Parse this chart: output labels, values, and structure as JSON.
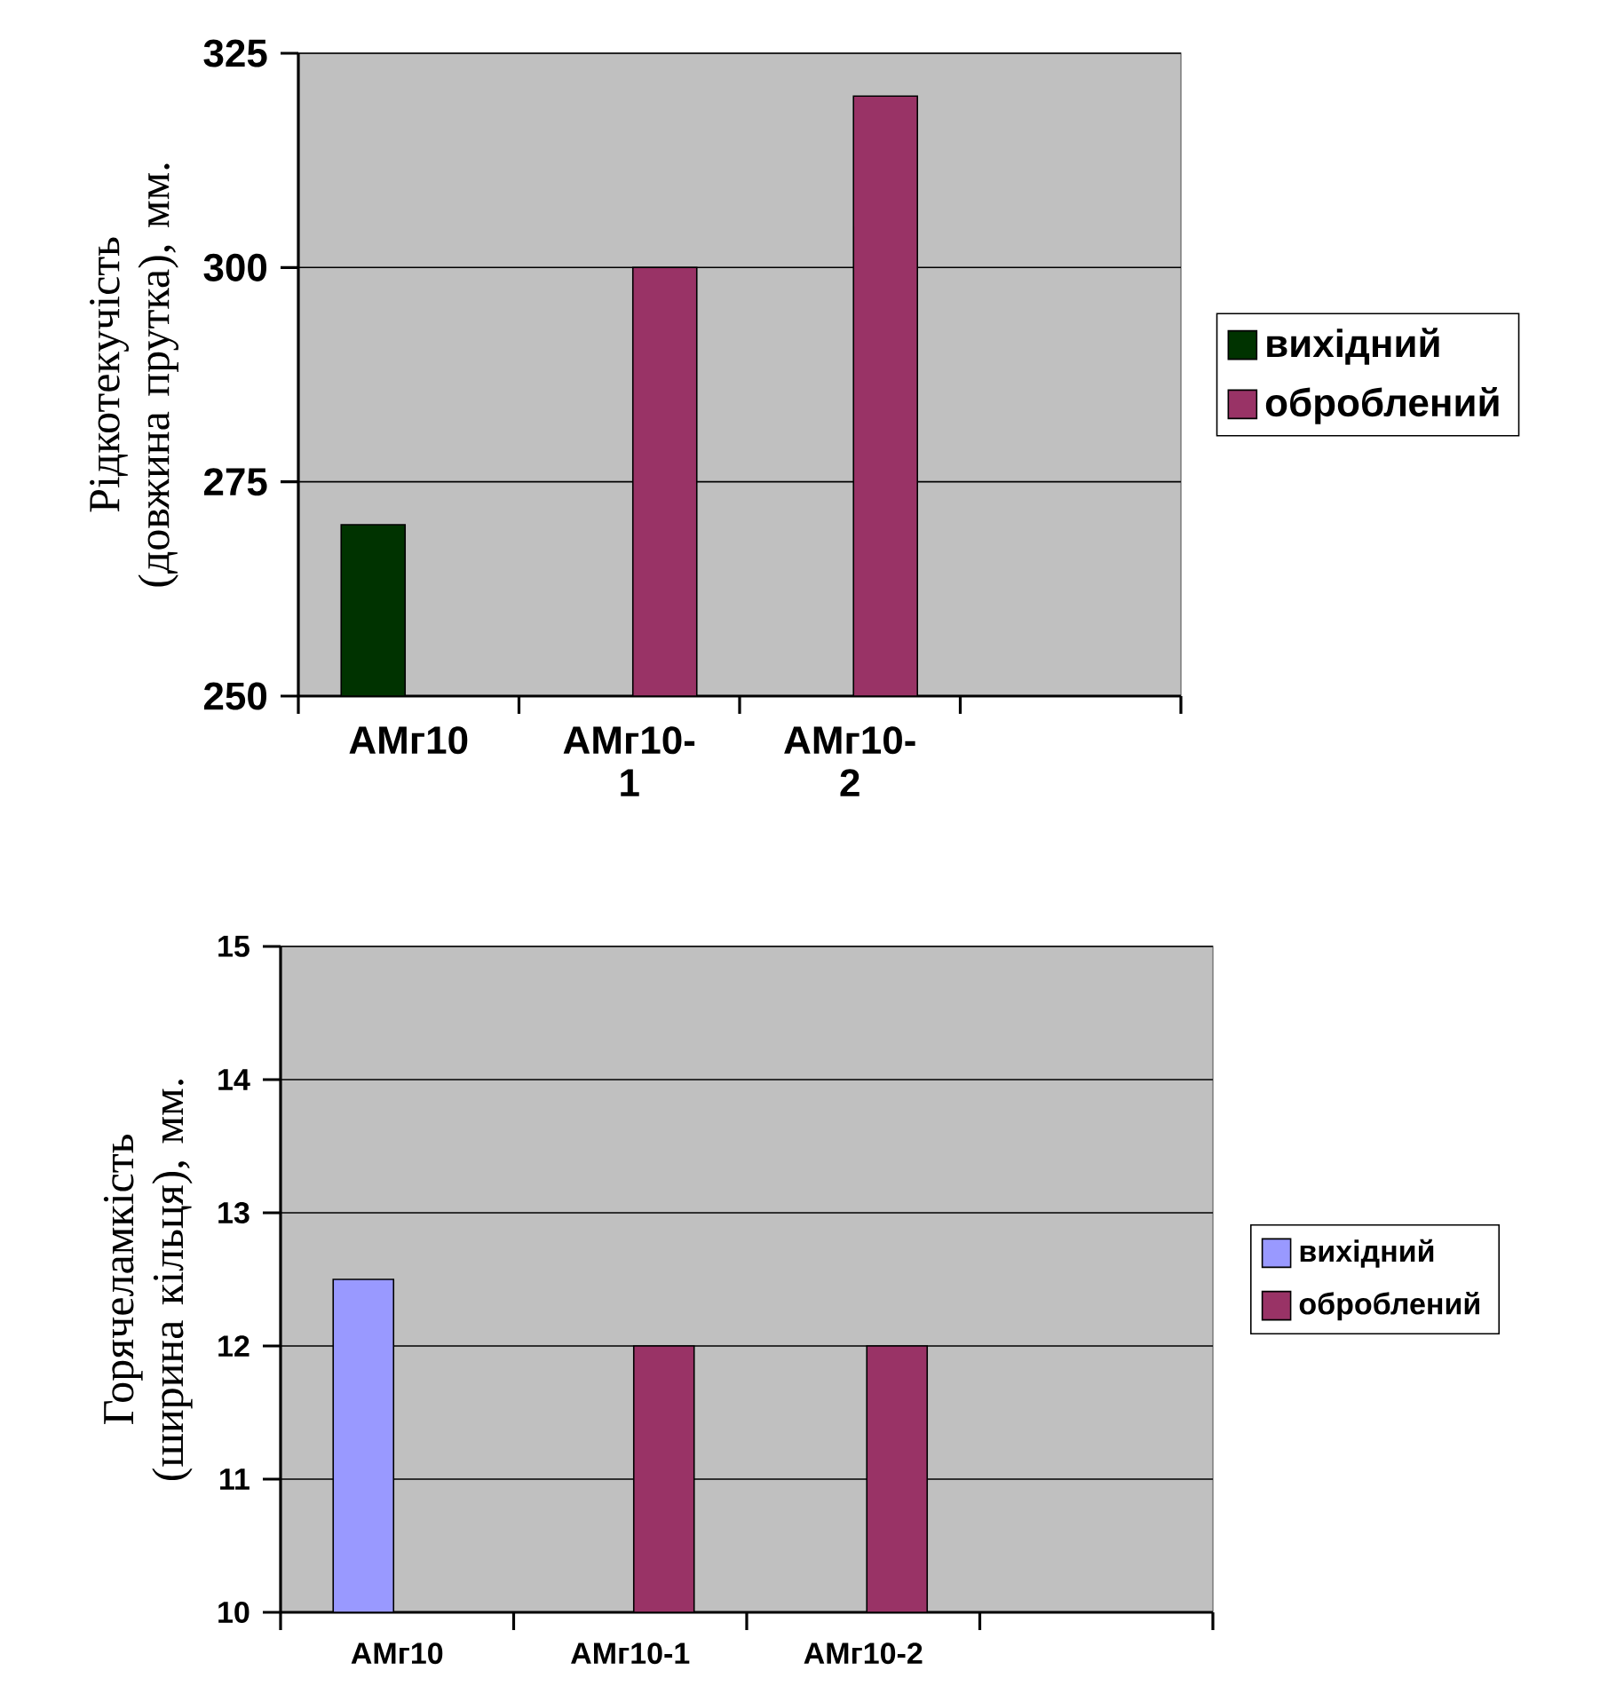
{
  "chart_data": [
    {
      "type": "bar",
      "ylabel": "Рідкотекучість (довжина прутка), мм.",
      "categories": [
        "АМг10",
        "АМг10-1",
        "АМг10-2",
        null
      ],
      "ylim": [
        250,
        325
      ],
      "yticks": [
        250,
        275,
        300,
        325
      ],
      "grid": "y",
      "legend": "right",
      "series": [
        {
          "name": "вихідний",
          "color": "#003300",
          "values": [
            270,
            null,
            null,
            null
          ]
        },
        {
          "name": "оброблений",
          "color": "#993366",
          "values": [
            null,
            300,
            320,
            null
          ]
        }
      ]
    },
    {
      "type": "bar",
      "ylabel": "Горячеламкість (ширина кільця), мм.",
      "categories": [
        "АМг10",
        "АМг10-1",
        "АМг10-2",
        null
      ],
      "ylim": [
        10,
        15
      ],
      "yticks": [
        10,
        11,
        12,
        13,
        14,
        15
      ],
      "grid": "y",
      "legend": "right",
      "series": [
        {
          "name": "вихідний",
          "color": "#9999ff",
          "values": [
            12.5,
            null,
            null,
            null
          ]
        },
        {
          "name": "оброблений",
          "color": "#993366",
          "values": [
            null,
            12,
            12,
            null
          ]
        }
      ]
    }
  ]
}
